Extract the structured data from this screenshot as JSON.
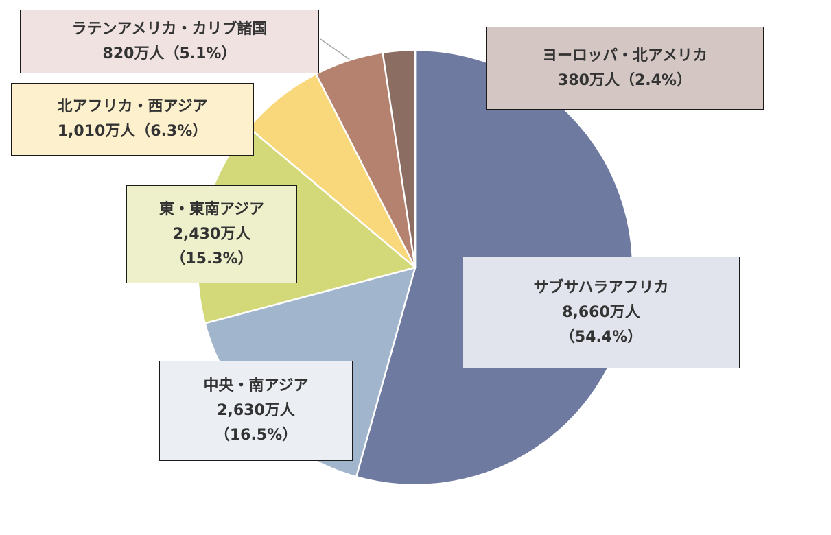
{
  "chart_data": {
    "type": "pie",
    "unit": "万人",
    "start_angle_deg": 0,
    "direction": "clockwise",
    "slices": [
      {
        "name": "サブサハラアフリカ",
        "value": 8660,
        "percent": 54.4,
        "color": "#6e7aa0",
        "label_lines": [
          "サブサハラアフリカ",
          "8,660万人",
          "（54.4%）"
        ],
        "label_bg": "#e1e4ec"
      },
      {
        "name": "中央・南アジア",
        "value": 2630,
        "percent": 16.5,
        "color": "#a1b6cd",
        "label_lines": [
          "中央・南アジア",
          "2,630万人",
          "（16.5%）"
        ],
        "label_bg": "#ebeff4"
      },
      {
        "name": "東・東南アジア",
        "value": 2430,
        "percent": 15.3,
        "color": "#d3d978",
        "label_lines": [
          "東・東南アジア",
          "2,430万人",
          "（15.3%）"
        ],
        "label_bg": "#eef0cc"
      },
      {
        "name": "北アフリカ・西アジア",
        "value": 1010,
        "percent": 6.3,
        "color": "#f9d77b",
        "label_lines": [
          "北アフリカ・西アジア",
          "1,010万人（6.3%）"
        ],
        "label_bg": "#fdf0cc"
      },
      {
        "name": "ラテンアメリカ・カリブ諸国",
        "value": 820,
        "percent": 5.1,
        "color": "#b4826f",
        "label_lines": [
          "ラテンアメリカ・カリブ諸国",
          "820万人（5.1%）"
        ],
        "label_bg": "#efe2e1"
      },
      {
        "name": "ヨーロッパ・北アメリカ",
        "value": 380,
        "percent": 2.4,
        "color": "#8b6d62",
        "label_lines": [
          "ヨーロッパ・北アメリカ",
          "380万人（2.4%）"
        ],
        "label_bg": "#d3c6c3"
      }
    ]
  }
}
